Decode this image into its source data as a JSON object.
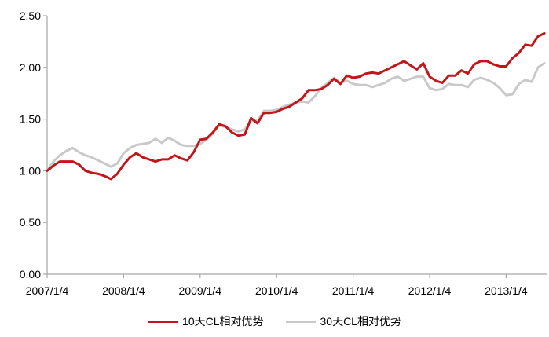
{
  "chart_data": {
    "type": "line",
    "title": "",
    "xlabel": "",
    "ylabel": "",
    "ylim": [
      0,
      2.5
    ],
    "y_tick_step": 0.5,
    "y_tick_labels": [
      "0.00",
      "0.50",
      "1.00",
      "1.50",
      "2.00",
      "2.50"
    ],
    "x_tick_labels": [
      "2007/1/4",
      "2008/1/4",
      "2009/1/4",
      "2010/1/4",
      "2011/1/4",
      "2012/1/4",
      "2013/1/4"
    ],
    "x_frequency": "monthly",
    "x_range": [
      "2007/1",
      "2013/7"
    ],
    "grid": false,
    "legend_position": "bottom",
    "axis_color": "#a6a6a6",
    "series": [
      {
        "name": "10天CL相对优势",
        "color": "#c3161c",
        "values": [
          1.0,
          1.05,
          1.09,
          1.09,
          1.09,
          1.06,
          1.0,
          0.98,
          0.97,
          0.95,
          0.92,
          0.97,
          1.06,
          1.13,
          1.17,
          1.13,
          1.11,
          1.09,
          1.11,
          1.11,
          1.15,
          1.12,
          1.1,
          1.18,
          1.3,
          1.31,
          1.37,
          1.45,
          1.43,
          1.37,
          1.34,
          1.35,
          1.51,
          1.46,
          1.56,
          1.56,
          1.57,
          1.6,
          1.62,
          1.66,
          1.7,
          1.78,
          1.78,
          1.79,
          1.83,
          1.89,
          1.84,
          1.92,
          1.9,
          1.91,
          1.94,
          1.95,
          1.94,
          1.97,
          2.0,
          2.03,
          2.06,
          2.02,
          1.98,
          2.04,
          1.91,
          1.87,
          1.85,
          1.92,
          1.92,
          1.97,
          1.94,
          2.03,
          2.06,
          2.06,
          2.03,
          2.01,
          2.01,
          2.09,
          2.14,
          2.22,
          2.21,
          2.3,
          2.33
        ]
      },
      {
        "name": "30天CL相对优势",
        "color": "#c9c9c9",
        "values": [
          1.0,
          1.09,
          1.15,
          1.19,
          1.22,
          1.18,
          1.15,
          1.13,
          1.1,
          1.07,
          1.04,
          1.07,
          1.17,
          1.22,
          1.25,
          1.26,
          1.27,
          1.31,
          1.27,
          1.32,
          1.29,
          1.25,
          1.24,
          1.24,
          1.26,
          1.3,
          1.36,
          1.44,
          1.42,
          1.4,
          1.38,
          1.4,
          1.49,
          1.48,
          1.58,
          1.58,
          1.59,
          1.62,
          1.64,
          1.66,
          1.67,
          1.66,
          1.72,
          1.8,
          1.85,
          1.9,
          1.85,
          1.87,
          1.84,
          1.83,
          1.83,
          1.81,
          1.83,
          1.85,
          1.89,
          1.91,
          1.87,
          1.89,
          1.91,
          1.91,
          1.8,
          1.78,
          1.79,
          1.84,
          1.83,
          1.83,
          1.81,
          1.88,
          1.9,
          1.88,
          1.85,
          1.8,
          1.73,
          1.74,
          1.84,
          1.88,
          1.86,
          2.0,
          2.04
        ]
      }
    ]
  }
}
